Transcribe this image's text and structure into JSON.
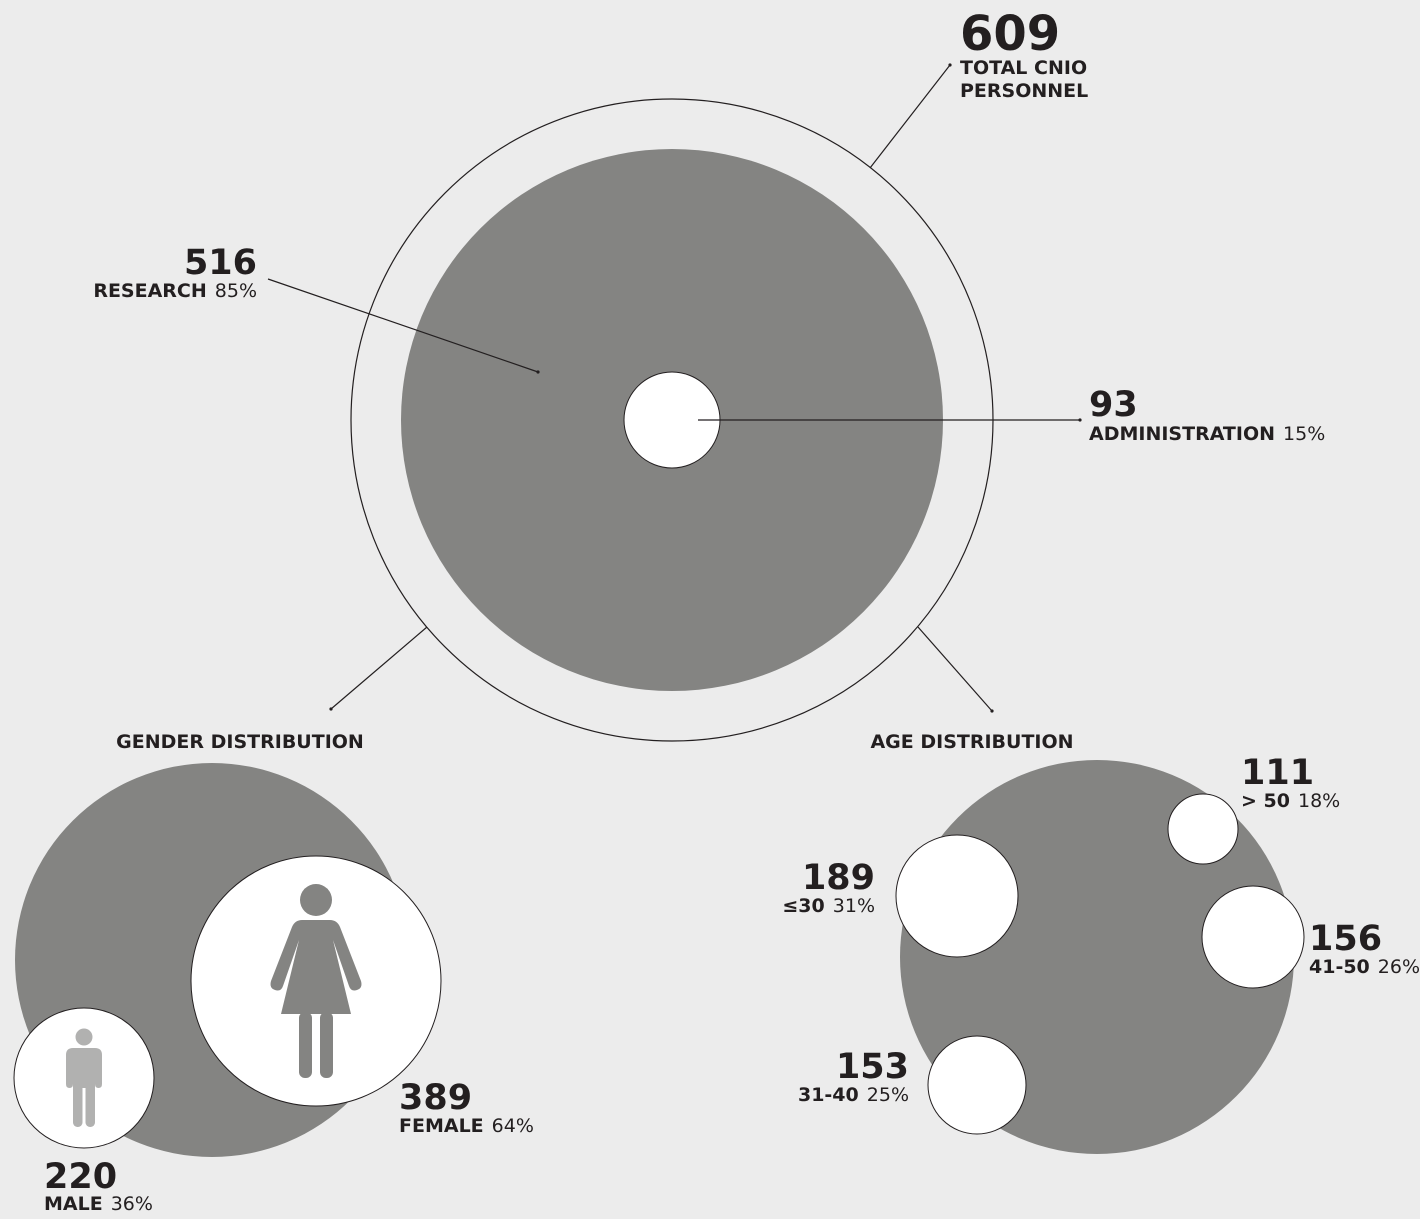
{
  "colors": {
    "background": "#ececec",
    "gray": "#848482",
    "white": "#ffffff",
    "ink": "#231f20",
    "icon": "#b1b1b0",
    "female_icon": "#848482"
  },
  "chart_data": [
    {
      "type": "bubble",
      "total": {
        "value": "609",
        "label_line1": "TOTAL CNIO",
        "label_line2": "PERSONNEL"
      },
      "segments": [
        {
          "value": "516",
          "label": "RESEARCH",
          "percent": "85%"
        },
        {
          "value": "93",
          "label": "ADMINISTRATION",
          "percent": "15%"
        }
      ]
    },
    {
      "type": "bubble",
      "title": "GENDER DISTRIBUTION",
      "segments": [
        {
          "value": "389",
          "label": "FEMALE",
          "percent": "64%",
          "icon": "female-icon"
        },
        {
          "value": "220",
          "label": "MALE",
          "percent": "36%",
          "icon": "male-icon"
        }
      ]
    },
    {
      "type": "bubble",
      "title": "AGE DISTRIBUTION",
      "segments": [
        {
          "value": "111",
          "label": "> 50",
          "percent": "18%"
        },
        {
          "value": "189",
          "label": "≤30",
          "percent": "31%"
        },
        {
          "value": "156",
          "label": "41-50",
          "percent": "26%"
        },
        {
          "value": "153",
          "label": "31-40",
          "percent": "25%"
        }
      ]
    }
  ]
}
